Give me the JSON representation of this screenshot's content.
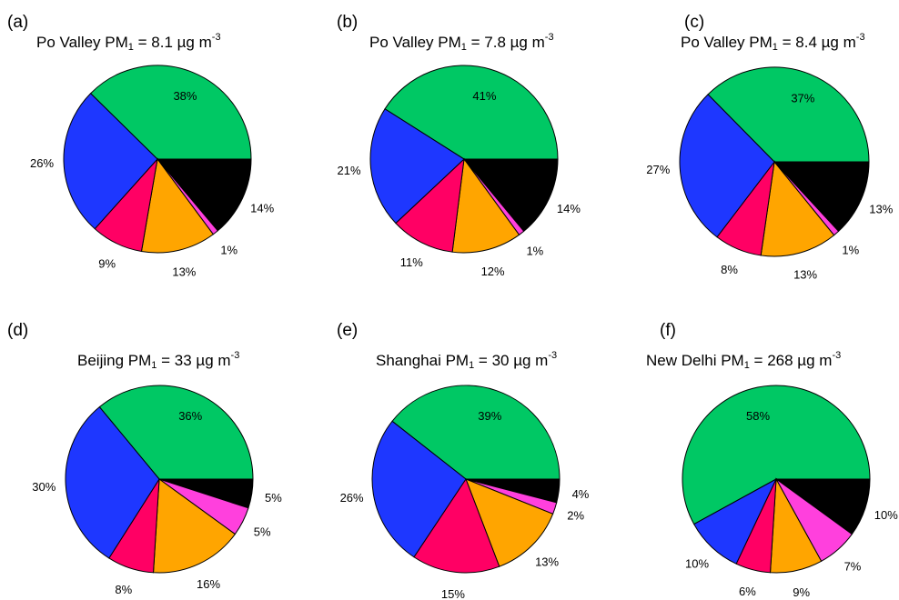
{
  "colors": {
    "green": "#00c864",
    "black": "#000000",
    "magenta": "#ff40dd",
    "orange": "#ffa500",
    "crimson": "#ff0064",
    "blue": "#1e37ff"
  },
  "panels": [
    {
      "letter": "(a)",
      "title_prefix": "Po Valley PM",
      "title_sub": "1",
      "title_mid": " = 8.1 µg m",
      "title_sup": "-3"
    },
    {
      "letter": "(b)",
      "title_prefix": "Po Valley PM",
      "title_sub": "1",
      "title_mid": " = 7.8 µg m",
      "title_sup": "-3"
    },
    {
      "letter": "(c)",
      "title_prefix": "Po Valley PM",
      "title_sub": "1",
      "title_mid": " = 8.4 µg m",
      "title_sup": "-3"
    },
    {
      "letter": "(d)",
      "title_prefix": "Beijing PM",
      "title_sub": "1",
      "title_mid": " = 33 µg m",
      "title_sup": "-3"
    },
    {
      "letter": "(e)",
      "title_prefix": "Shanghai PM",
      "title_sub": "1",
      "title_mid": " = 30 µg m",
      "title_sup": "-3"
    },
    {
      "letter": "(f)",
      "title_prefix": "New Delhi PM",
      "title_sub": "1",
      "title_mid": " = 268 µg m",
      "title_sup": "-3"
    }
  ],
  "chart_data": [
    {
      "type": "pie",
      "title": "Po Valley PM1 = 8.1 µg m-3",
      "slice_colors": [
        "green",
        "black",
        "magenta",
        "orange",
        "crimson",
        "blue"
      ],
      "values": [
        38,
        14,
        1,
        13,
        9,
        26
      ],
      "labels": [
        "38%",
        "14%",
        "1%",
        "13%",
        "9%",
        "26%"
      ]
    },
    {
      "type": "pie",
      "title": "Po Valley PM1 = 7.8 µg m-3",
      "slice_colors": [
        "green",
        "black",
        "magenta",
        "orange",
        "crimson",
        "blue"
      ],
      "values": [
        41,
        14,
        1,
        12,
        11,
        21
      ],
      "labels": [
        "41%",
        "14%",
        "1%",
        "12%",
        "11%",
        "21%"
      ]
    },
    {
      "type": "pie",
      "title": "Po Valley PM1 = 8.4 µg m-3",
      "slice_colors": [
        "green",
        "black",
        "magenta",
        "orange",
        "crimson",
        "blue"
      ],
      "values": [
        37,
        13,
        1,
        13,
        8,
        27
      ],
      "labels": [
        "37%",
        "13%",
        "1%",
        "13%",
        "8%",
        "27%"
      ]
    },
    {
      "type": "pie",
      "title": "Beijing PM1 = 33 µg m-3",
      "slice_colors": [
        "green",
        "black",
        "magenta",
        "orange",
        "crimson",
        "blue"
      ],
      "values": [
        36,
        5,
        5,
        16,
        8,
        30
      ],
      "labels": [
        "36%",
        "5%",
        "5%",
        "16%",
        "8%",
        "30%"
      ]
    },
    {
      "type": "pie",
      "title": "Shanghai PM1 = 30 µg m-3",
      "slice_colors": [
        "green",
        "black",
        "magenta",
        "orange",
        "crimson",
        "blue"
      ],
      "values": [
        39,
        4,
        2,
        13,
        15,
        26
      ],
      "labels": [
        "39%",
        "4%",
        "2%",
        "13%",
        "15%",
        "26%"
      ]
    },
    {
      "type": "pie",
      "title": "New Delhi PM1 = 268 µg m-3",
      "slice_colors": [
        "green",
        "black",
        "magenta",
        "orange",
        "crimson",
        "blue"
      ],
      "values": [
        58,
        10,
        7,
        9,
        6,
        10
      ],
      "labels": [
        "58%",
        "10%",
        "7%",
        "9%",
        "6%",
        "10%"
      ]
    }
  ]
}
